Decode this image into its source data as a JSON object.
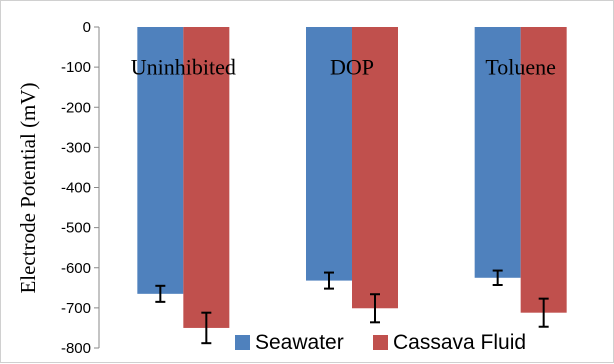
{
  "chart_data": {
    "type": "bar",
    "title": "",
    "ylabel": "Electrode Potential (mV)",
    "xlabel": "",
    "ylim": [
      -800,
      0
    ],
    "yticks": [
      0,
      -100,
      -200,
      -300,
      -400,
      -500,
      -600,
      -700,
      -800
    ],
    "categories": [
      "Uninhibited",
      "DOP",
      "Toluene"
    ],
    "series": [
      {
        "name": "Seawater",
        "color": "#4f81bd",
        "values": [
          -665,
          -632,
          -625
        ],
        "errors": [
          20,
          20,
          18
        ]
      },
      {
        "name": "Cassava Fluid",
        "color": "#c0504d",
        "values": [
          -750,
          -701,
          -712
        ],
        "errors": [
          38,
          35,
          35
        ]
      }
    ],
    "legend_position": "bottom-right-inside",
    "grid": false
  }
}
